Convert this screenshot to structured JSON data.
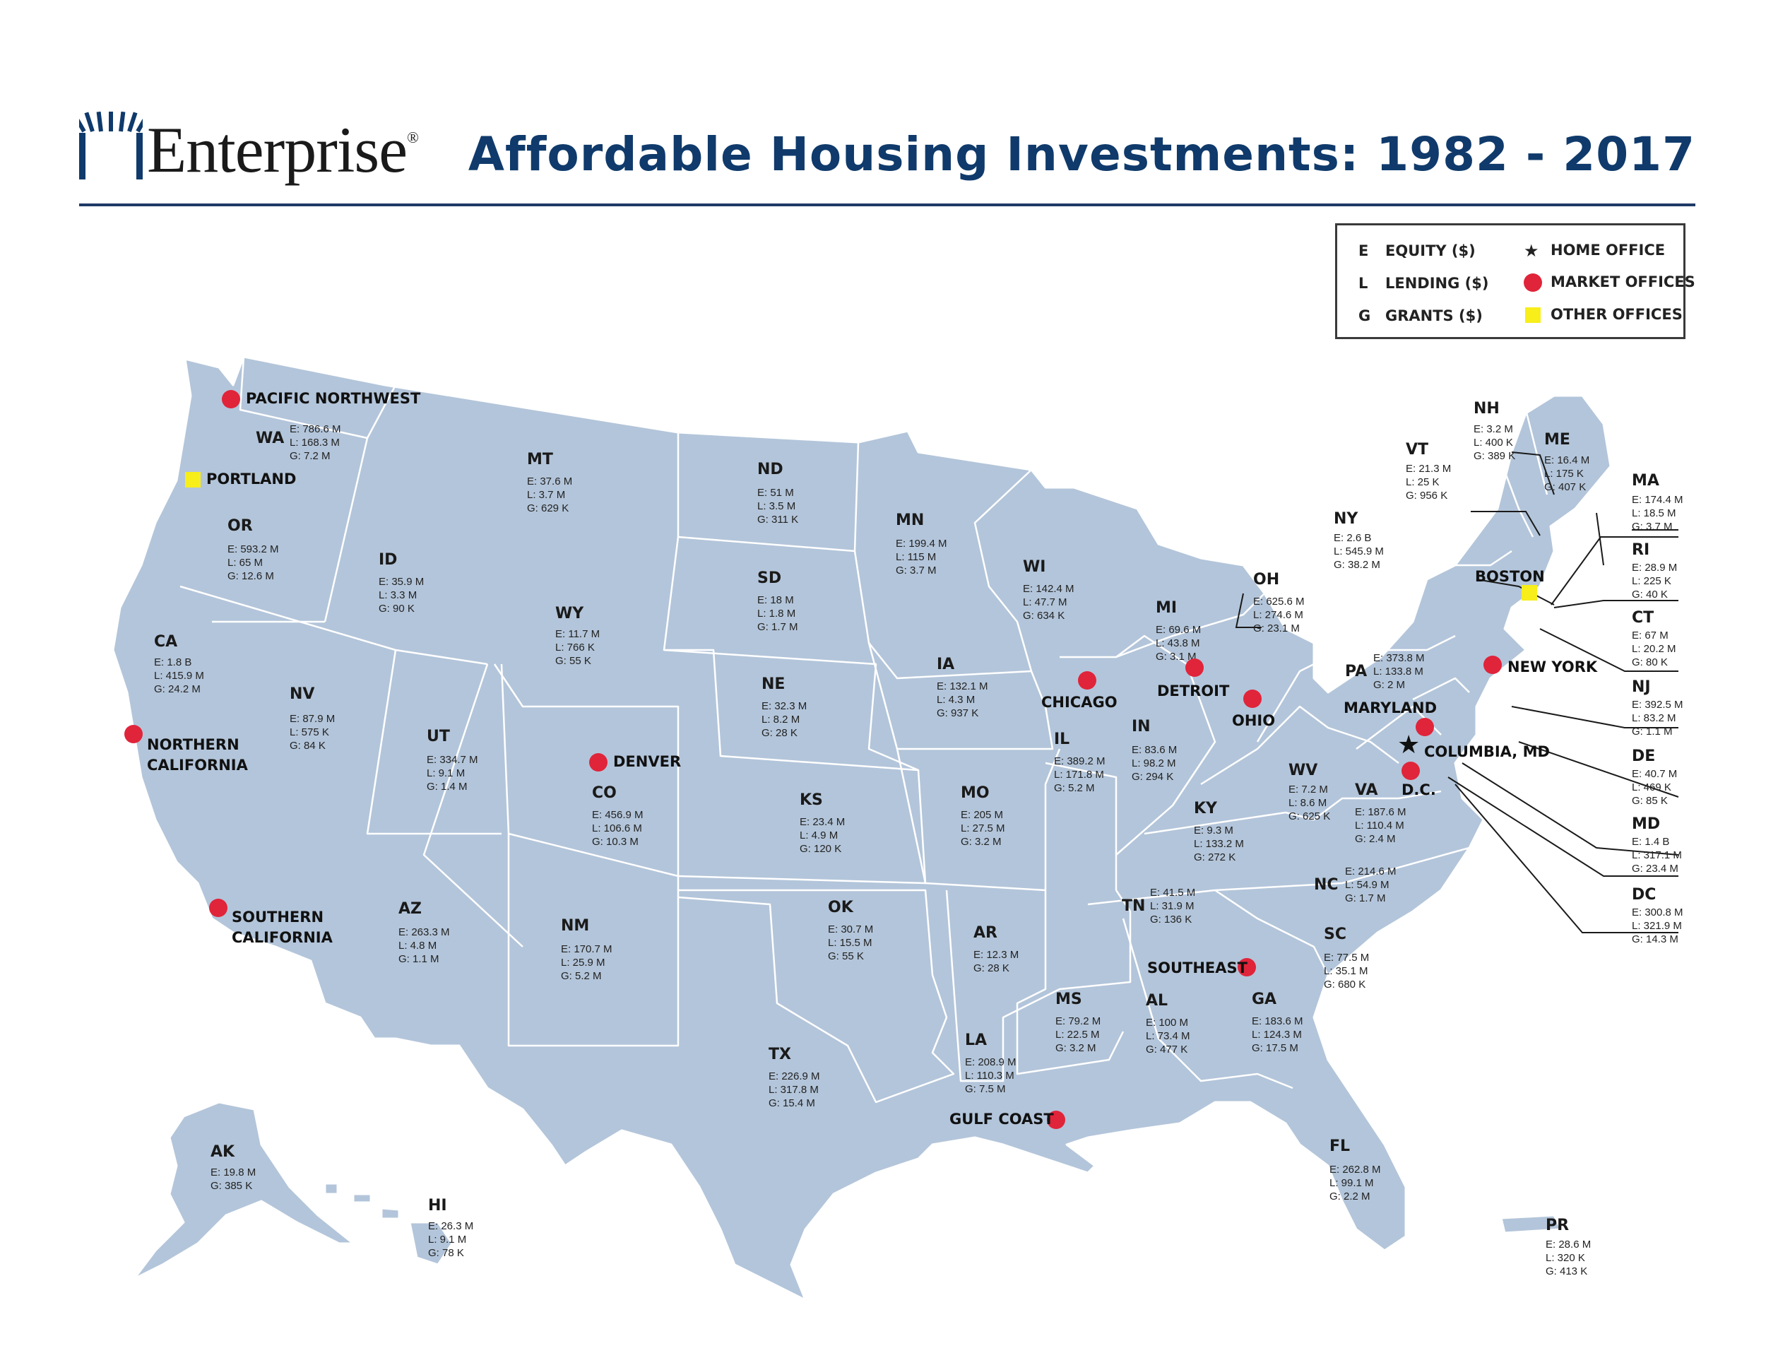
{
  "brand": {
    "name": "Enterprise",
    "reg_mark": "®",
    "color": "#0f3a6b"
  },
  "title": "Affordable Housing Investments: 1982 - 2017",
  "legend": {
    "items": [
      {
        "key": "E",
        "label": "EQUITY ($)"
      },
      {
        "key": "L",
        "label": "LENDING ($)"
      },
      {
        "key": "G",
        "label": "GRANTS ($)"
      }
    ],
    "home_office": "HOME OFFICE",
    "market_offices": "MARKET OFFICES",
    "other_offices": "OTHER OFFICES",
    "market_color": "#e0243a",
    "other_color": "#f7ee1a",
    "map_fill": "#b3c5da"
  },
  "states": [
    {
      "abbr": "WA",
      "lines": [
        "E: 786.6 M",
        "L: 168.3 M",
        "G: 7.2 M"
      ]
    },
    {
      "abbr": "OR",
      "lines": [
        "E: 593.2 M",
        "L: 65 M",
        "G: 12.6 M"
      ]
    },
    {
      "abbr": "CA",
      "lines": [
        "E: 1.8 B",
        "L: 415.9 M",
        "G: 24.2 M"
      ]
    },
    {
      "abbr": "ID",
      "lines": [
        "E: 35.9 M",
        "L: 3.3 M",
        "G: 90 K"
      ]
    },
    {
      "abbr": "NV",
      "lines": [
        "E: 87.9 M",
        "L: 575 K",
        "G: 84 K"
      ]
    },
    {
      "abbr": "MT",
      "lines": [
        "E: 37.6 M",
        "L: 3.7 M",
        "G: 629 K"
      ]
    },
    {
      "abbr": "WY",
      "lines": [
        "E: 11.7 M",
        "L: 766 K",
        "G: 55 K"
      ]
    },
    {
      "abbr": "UT",
      "lines": [
        "E: 334.7 M",
        "L: 9.1 M",
        "G: 1.4 M"
      ]
    },
    {
      "abbr": "AZ",
      "lines": [
        "E: 263.3 M",
        "L: 4.8 M",
        "G: 1.1 M"
      ]
    },
    {
      "abbr": "CO",
      "lines": [
        "E: 456.9 M",
        "L: 106.6 M",
        "G: 10.3 M"
      ]
    },
    {
      "abbr": "NM",
      "lines": [
        "E: 170.7 M",
        "L: 25.9 M",
        "G: 5.2 M"
      ]
    },
    {
      "abbr": "ND",
      "lines": [
        "E: 51 M",
        "L: 3.5 M",
        "G: 311 K"
      ]
    },
    {
      "abbr": "SD",
      "lines": [
        "E: 18 M",
        "L: 1.8 M",
        "G: 1.7 M"
      ]
    },
    {
      "abbr": "NE",
      "lines": [
        "E: 32.3 M",
        "L: 8.2 M",
        "G: 28 K"
      ]
    },
    {
      "abbr": "KS",
      "lines": [
        "E: 23.4 M",
        "L: 4.9 M",
        "G: 120 K"
      ]
    },
    {
      "abbr": "OK",
      "lines": [
        "E: 30.7 M",
        "L: 15.5 M",
        "G: 55 K"
      ]
    },
    {
      "abbr": "TX",
      "lines": [
        "E: 226.9 M",
        "L: 317.8 M",
        "G: 15.4 M"
      ]
    },
    {
      "abbr": "MN",
      "lines": [
        "E: 199.4 M",
        "L: 115 M",
        "G: 3.7 M"
      ]
    },
    {
      "abbr": "IA",
      "lines": [
        "E: 132.1 M",
        "L: 4.3 M",
        "G: 937 K"
      ]
    },
    {
      "abbr": "MO",
      "lines": [
        "E: 205 M",
        "L: 27.5 M",
        "G: 3.2 M"
      ]
    },
    {
      "abbr": "AR",
      "lines": [
        "E: 12.3 M",
        "G: 28 K"
      ]
    },
    {
      "abbr": "LA",
      "lines": [
        "E: 208.9 M",
        "L: 110.3 M",
        "G: 7.5 M"
      ]
    },
    {
      "abbr": "WI",
      "lines": [
        "E: 142.4 M",
        "L: 47.7 M",
        "G: 634 K"
      ]
    },
    {
      "abbr": "IL",
      "lines": [
        "E: 389.2 M",
        "L: 171.8 M",
        "G: 5.2 M"
      ]
    },
    {
      "abbr": "MI",
      "lines": [
        "E: 69.6 M",
        "L: 43.8 M",
        "G: 3.1 M"
      ]
    },
    {
      "abbr": "IN",
      "lines": [
        "E: 83.6 M",
        "L: 98.2 M",
        "G: 294 K"
      ]
    },
    {
      "abbr": "OH",
      "lines": [
        "E: 625.6 M",
        "L: 274.6 M",
        "G: 23.1 M"
      ]
    },
    {
      "abbr": "KY",
      "lines": [
        "E: 9.3 M",
        "L: 133.2 M",
        "G: 272 K"
      ]
    },
    {
      "abbr": "TN",
      "lines": [
        "E: 41.5 M",
        "L: 31.9 M",
        "G: 136 K"
      ]
    },
    {
      "abbr": "MS",
      "lines": [
        "E: 79.2 M",
        "L: 22.5 M",
        "G: 3.2 M"
      ]
    },
    {
      "abbr": "AL",
      "lines": [
        "E: 100 M",
        "L: 73.4 M",
        "G: 477 K"
      ]
    },
    {
      "abbr": "GA",
      "lines": [
        "E: 183.6 M",
        "L: 124.3 M",
        "G: 17.5 M"
      ]
    },
    {
      "abbr": "FL",
      "lines": [
        "E: 262.8 M",
        "L: 99.1 M",
        "G: 2.2 M"
      ]
    },
    {
      "abbr": "SC",
      "lines": [
        "E: 77.5 M",
        "L: 35.1 M",
        "G: 680 K"
      ]
    },
    {
      "abbr": "NC",
      "lines": [
        "E: 214.6 M",
        "L: 54.9 M",
        "G: 1.7 M"
      ]
    },
    {
      "abbr": "VA",
      "lines": [
        "E: 187.6 M",
        "L: 110.4 M",
        "G: 2.4 M"
      ]
    },
    {
      "abbr": "WV",
      "lines": [
        "E: 7.2 M",
        "L: 8.6 M",
        "G: 625 K"
      ]
    },
    {
      "abbr": "PA",
      "lines": [
        "E: 373.8 M",
        "L: 133.8 M",
        "G: 2 M"
      ]
    },
    {
      "abbr": "NY",
      "lines": [
        "E: 2.6 B",
        "L: 545.9 M",
        "G: 38.2 M"
      ]
    },
    {
      "abbr": "VT",
      "lines": [
        "E: 21.3 M",
        "L: 25 K",
        "G: 956 K"
      ]
    },
    {
      "abbr": "NH",
      "lines": [
        "E: 3.2 M",
        "L: 400 K",
        "G: 389 K"
      ]
    },
    {
      "abbr": "ME",
      "lines": [
        "E: 16.4 M",
        "L: 175 K",
        "G: 407 K"
      ]
    },
    {
      "abbr": "MA",
      "lines": [
        "E: 174.4 M",
        "L: 18.5 M",
        "G: 3.7 M"
      ]
    },
    {
      "abbr": "RI",
      "lines": [
        "E: 28.9 M",
        "L: 225 K",
        "G: 40 K"
      ]
    },
    {
      "abbr": "CT",
      "lines": [
        "E: 67 M",
        "L: 20.2 M",
        "G: 80 K"
      ]
    },
    {
      "abbr": "NJ",
      "lines": [
        "E: 392.5 M",
        "L: 83.2 M",
        "G: 1.1 M"
      ]
    },
    {
      "abbr": "DE",
      "lines": [
        "E: 40.7 M",
        "L: 469 K",
        "G: 85 K"
      ]
    },
    {
      "abbr": "MD",
      "lines": [
        "E: 1.4 B",
        "L: 317.1 M",
        "G: 23.4 M"
      ]
    },
    {
      "abbr": "DC",
      "lines": [
        "E: 300.8 M",
        "L: 321.9 M",
        "G: 14.3 M"
      ]
    },
    {
      "abbr": "AK",
      "lines": [
        "E: 19.8 M",
        "G: 385 K"
      ]
    },
    {
      "abbr": "HI",
      "lines": [
        "E: 26.3 M",
        "L: 9.1 M",
        "G: 78 K"
      ]
    },
    {
      "abbr": "PR",
      "lines": [
        "E: 28.6 M",
        "L: 320 K",
        "G: 413 K"
      ]
    }
  ],
  "offices": [
    {
      "name": "PACIFIC NORTHWEST",
      "type": "market"
    },
    {
      "name": "PORTLAND",
      "type": "other"
    },
    {
      "name": "NORTHERN\nCALIFORNIA",
      "type": "market"
    },
    {
      "name": "SOUTHERN\nCALIFORNIA",
      "type": "market"
    },
    {
      "name": "DENVER",
      "type": "market"
    },
    {
      "name": "CHICAGO",
      "type": "market"
    },
    {
      "name": "DETROIT",
      "type": "market"
    },
    {
      "name": "OHIO",
      "type": "market"
    },
    {
      "name": "SOUTHEAST",
      "type": "market"
    },
    {
      "name": "GULF COAST",
      "type": "market"
    },
    {
      "name": "BOSTON",
      "type": "other"
    },
    {
      "name": "NEW YORK",
      "type": "market"
    },
    {
      "name": "MARYLAND",
      "type": "market"
    },
    {
      "name": "COLUMBIA, MD",
      "type": "home"
    },
    {
      "name": "D.C.",
      "type": "market"
    }
  ]
}
